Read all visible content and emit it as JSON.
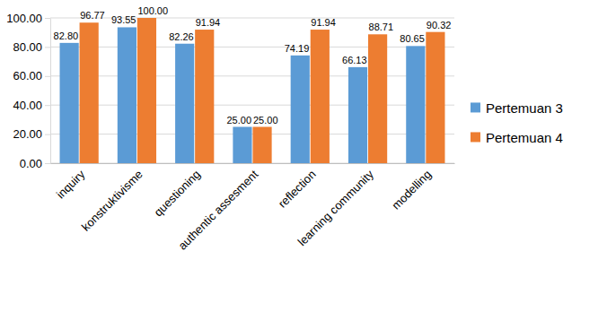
{
  "chart_data": {
    "type": "bar",
    "categories": [
      "inquiry",
      "konstruktivisme",
      "questioning",
      "authentic assesment",
      "reflection",
      "learning community",
      "modelling"
    ],
    "series": [
      {
        "name": "Pertemuan 3",
        "color": "#5b9bd5",
        "values": [
          82.8,
          93.55,
          82.26,
          25,
          74.19,
          66.13,
          80.65
        ],
        "value_labels": [
          "82.80",
          "93.55",
          "82.26",
          "25.00",
          "74.19",
          "66.13",
          "80.65"
        ]
      },
      {
        "name": "Pertemuan 4",
        "color": "#ed7d31",
        "values": [
          96.77,
          100,
          91.94,
          25,
          91.94,
          88.71,
          90.32
        ],
        "value_labels": [
          "96.77",
          "100.00",
          "91.94",
          "25.00",
          "91.94",
          "88.71",
          "90.32"
        ]
      }
    ],
    "ylim": [
      0,
      100
    ],
    "yticks": [
      {
        "value": 0,
        "label": "0.00"
      },
      {
        "value": 20,
        "label": "20.00"
      },
      {
        "value": 40,
        "label": "40.00"
      },
      {
        "value": 60,
        "label": "60.00"
      },
      {
        "value": 80,
        "label": "80.00"
      },
      {
        "value": 100,
        "label": "100.00"
      }
    ],
    "grid": true,
    "legend": "right",
    "data_labels": true
  }
}
